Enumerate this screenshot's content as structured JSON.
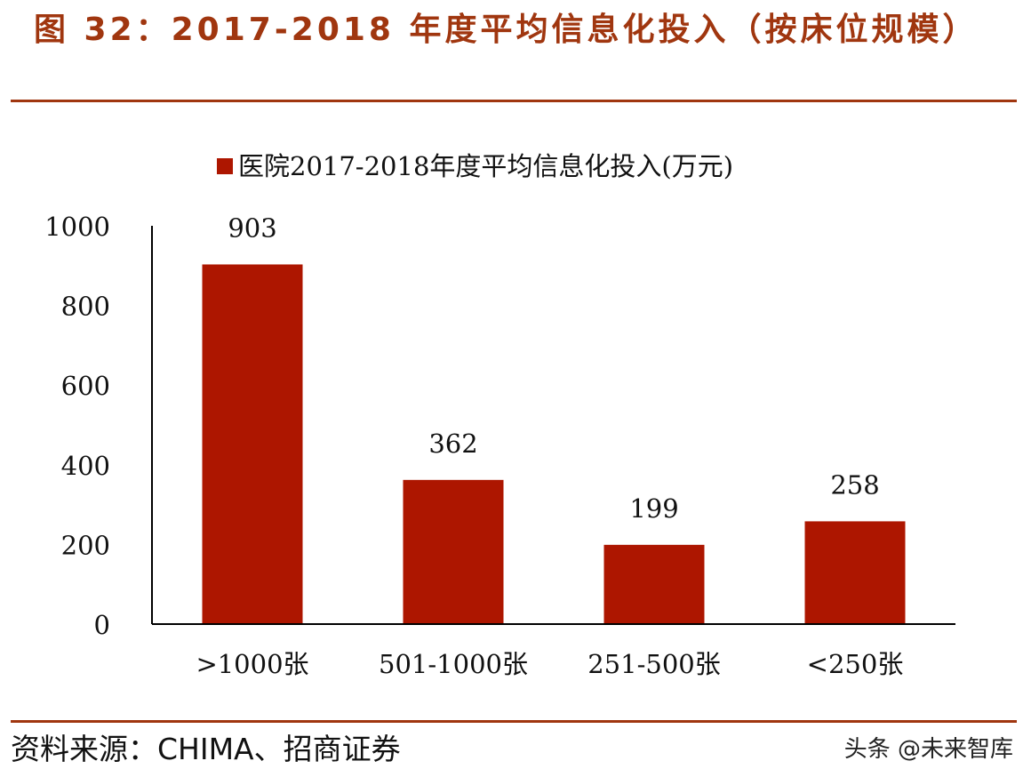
{
  "figure_title": "图 32：2017-2018 年度平均信息化投入（按床位规模）",
  "source": "资料来源：CHIMA、招商证券",
  "watermark": "头条 @未来智库",
  "colors": {
    "bar": "#ad1600",
    "title": "#a0360f",
    "axis": "#000000"
  },
  "chart_data": {
    "type": "bar",
    "title": "",
    "legend": {
      "entries": [
        "医院2017-2018年度平均信息化投入(万元)"
      ],
      "position": "top"
    },
    "categories": [
      ">1000张",
      "501-1000张",
      "251-500张",
      "<250张"
    ],
    "series": [
      {
        "name": "医院2017-2018年度平均信息化投入(万元)",
        "values": [
          903,
          362,
          199,
          258
        ]
      }
    ],
    "data_labels": [
      "903",
      "362",
      "199",
      "258"
    ],
    "ylim": [
      0,
      1000
    ],
    "yticks": [
      0,
      200,
      400,
      600,
      800,
      1000
    ],
    "xlabel": "",
    "ylabel": "",
    "grid": false
  }
}
